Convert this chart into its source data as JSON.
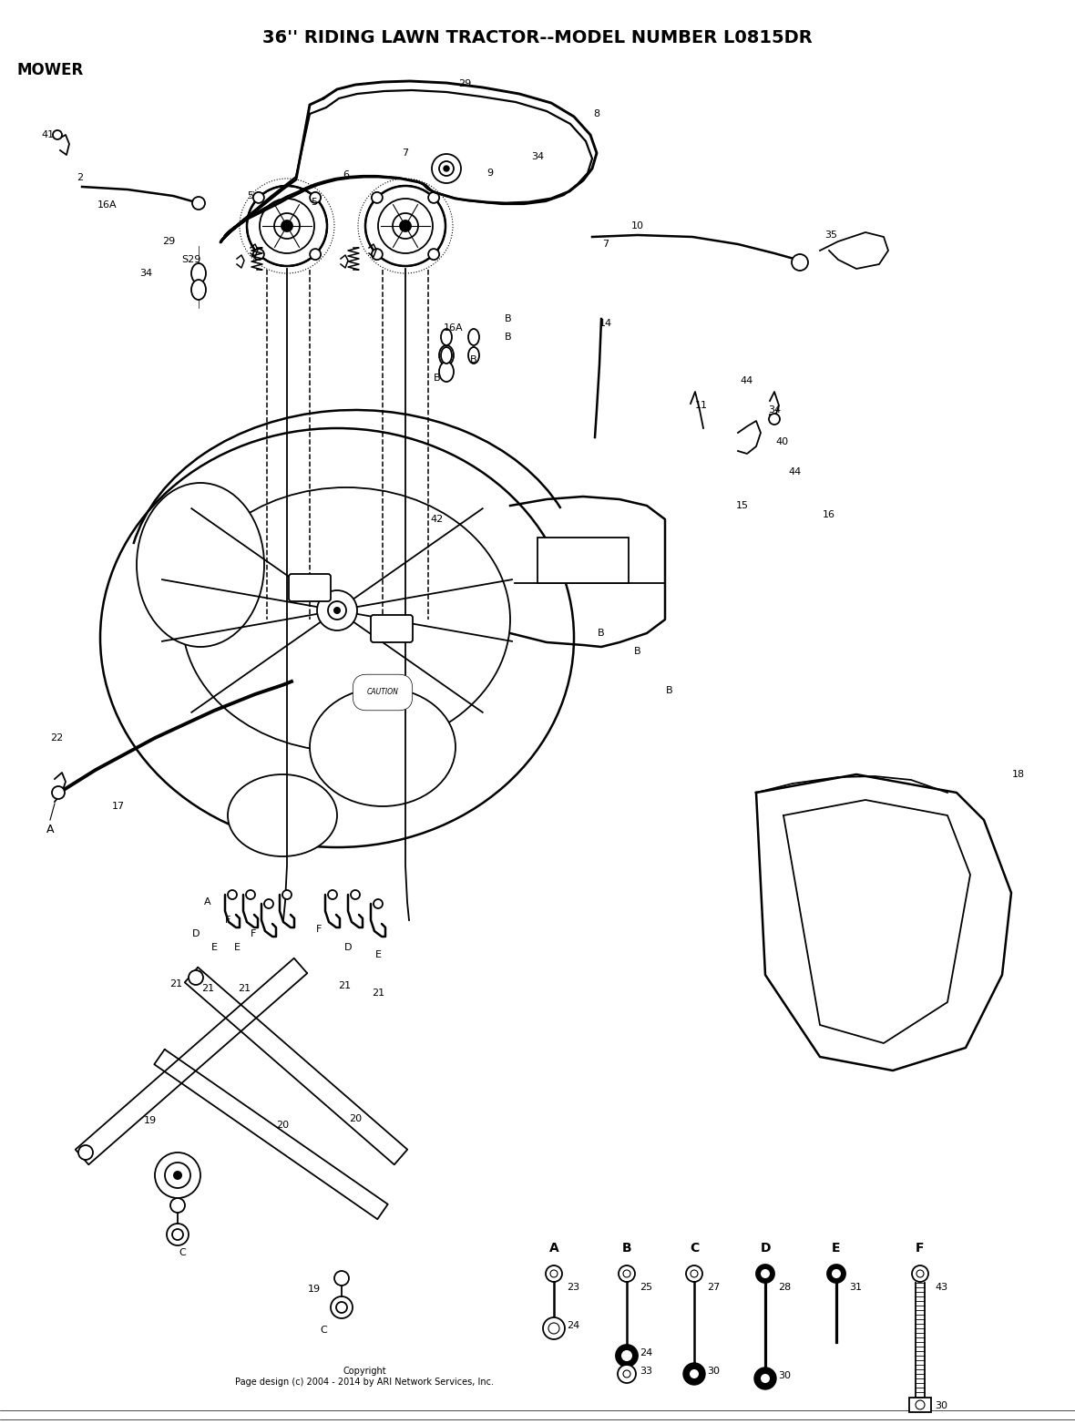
{
  "title": "36'' RIDING LAWN TRACTOR--MODEL NUMBER L0815DR",
  "subtitle": "MOWER",
  "bg_color": "#ffffff",
  "title_fontsize": 14,
  "subtitle_fontsize": 12,
  "copyright_text": "Copyright\nPage design (c) 2004 - 2014 by ARI Network Services, Inc.",
  "lw": 1.3
}
